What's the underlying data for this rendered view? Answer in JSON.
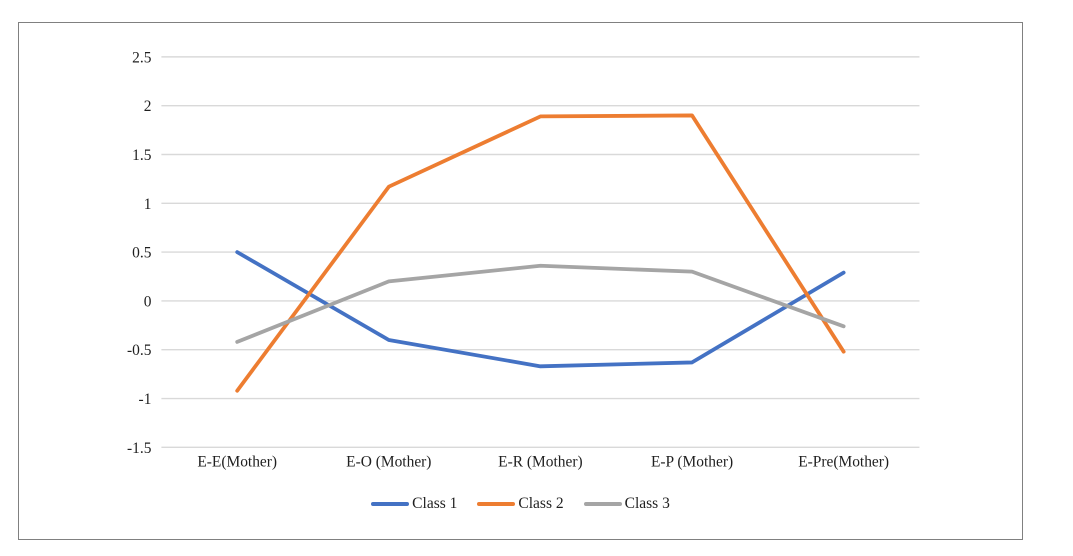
{
  "figure": {
    "background": "#ffffff",
    "frame_border_color": "#808080"
  },
  "chart_data": {
    "type": "line",
    "title": "",
    "xlabel": "",
    "ylabel": "",
    "categories": [
      "E-E(Mother)",
      "E-O (Mother)",
      "E-R (Mother)",
      "E-P (Mother)",
      "E-Pre(Mother)"
    ],
    "series": [
      {
        "name": "Class 1",
        "color": "#4472C4",
        "values": [
          0.5,
          -0.4,
          -0.67,
          -0.63,
          0.29
        ]
      },
      {
        "name": "Class 2",
        "color": "#ED7D31",
        "values": [
          -0.92,
          1.17,
          1.89,
          1.9,
          -0.52
        ]
      },
      {
        "name": "Class 3",
        "color": "#A5A5A5",
        "values": [
          -0.42,
          0.2,
          0.36,
          0.3,
          -0.26
        ]
      }
    ],
    "ylim": [
      -1.5,
      2.5
    ],
    "ytick_step": 0.5,
    "yticks": [
      "2.5",
      "2",
      "1.5",
      "1",
      "0.5",
      "0",
      "-0.5",
      "-1",
      "-1.5"
    ],
    "grid": true,
    "gridline_color": "#D9D9D9",
    "axis_text_color": "#1f1f1f",
    "legend_position": "bottom"
  }
}
